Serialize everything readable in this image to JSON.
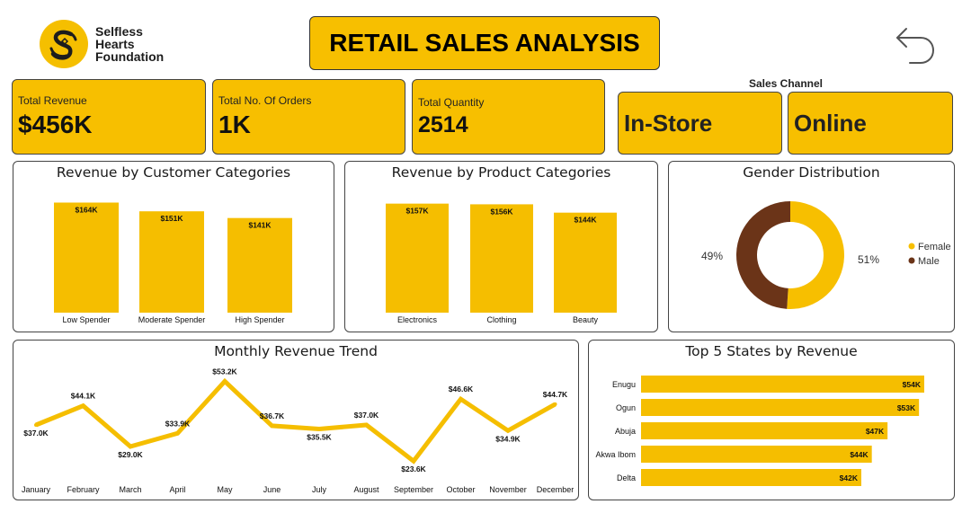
{
  "org": {
    "line1": "Selfless",
    "line2": "Hearts",
    "line3": "Foundation"
  },
  "dashboard_title": "RETAIL SALES ANALYSIS",
  "kpis": [
    {
      "label": "Total Revenue",
      "value": "$456K"
    },
    {
      "label": "Total No. Of Orders",
      "value": "1K"
    },
    {
      "label": "Total Quantity",
      "value": "2514"
    }
  ],
  "sales_channel": {
    "title": "Sales Channel",
    "options": [
      "In-Store",
      "Online"
    ]
  },
  "colors": {
    "accent": "#f7bf00",
    "bar": "#f5be00",
    "male": "#6b3418",
    "text": "#111111"
  },
  "chart_data": [
    {
      "type": "bar",
      "title": "Revenue by Customer Categories",
      "categories": [
        "Low Spender",
        "Moderate Spender",
        "High Spender"
      ],
      "values": [
        164,
        151,
        141
      ],
      "labels": [
        "$164K",
        "$151K",
        "$141K"
      ],
      "ylim": [
        0,
        170
      ]
    },
    {
      "type": "bar",
      "title": "Revenue by Product Categories",
      "categories": [
        "Electronics",
        "Clothing",
        "Beauty"
      ],
      "values": [
        157,
        156,
        144
      ],
      "labels": [
        "$157K",
        "$156K",
        "$144K"
      ],
      "ylim": [
        0,
        163
      ]
    },
    {
      "type": "pie",
      "title": "Gender Distribution",
      "slices": [
        {
          "name": "Female",
          "value": 51,
          "label": "51%"
        },
        {
          "name": "Male",
          "value": 49,
          "label": "49%"
        }
      ]
    },
    {
      "type": "line",
      "title": "Monthly Revenue Trend",
      "x": [
        "January",
        "February",
        "March",
        "April",
        "May",
        "June",
        "July",
        "August",
        "September",
        "October",
        "November",
        "December"
      ],
      "values": [
        37.0,
        44.1,
        29.0,
        33.9,
        53.2,
        36.7,
        35.5,
        37.0,
        23.6,
        46.6,
        34.9,
        44.7
      ],
      "labels": [
        "$37.0K",
        "$44.1K",
        "$29.0K",
        "$33.9K",
        "$53.2K",
        "$36.7K",
        "$35.5K",
        "$37.0K",
        "$23.6K",
        "$46.6K",
        "$34.9K",
        "$44.7K"
      ],
      "ylim": [
        20,
        55
      ]
    },
    {
      "type": "bar",
      "orientation": "horizontal",
      "title": "Top 5 States by Revenue",
      "categories": [
        "Enugu",
        "Ogun",
        "Abuja",
        "Akwa Ibom",
        "Delta"
      ],
      "values": [
        54,
        53,
        47,
        44,
        42
      ],
      "labels": [
        "$54K",
        "$53K",
        "$47K",
        "$44K",
        "$42K"
      ],
      "xlim": [
        0,
        54
      ]
    }
  ]
}
